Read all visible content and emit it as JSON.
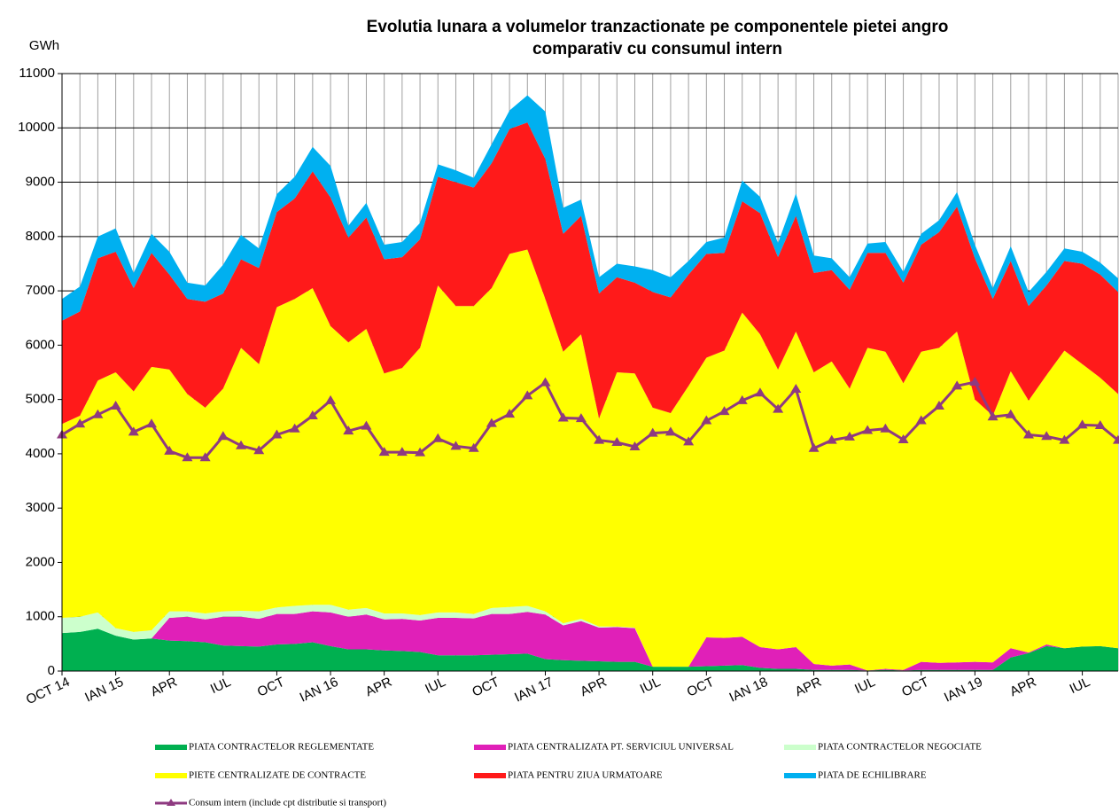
{
  "chart_data": {
    "type": "stacked-area",
    "title": [
      "Evolutia lunara a volumelor tranzactionate pe componentele pietei angro",
      "comparativ cu consumul intern"
    ],
    "y_label": "GWh",
    "categories": [
      "OCT 14",
      null,
      null,
      "IAN 15",
      null,
      null,
      "APR",
      null,
      null,
      "IUL",
      null,
      null,
      "OCT",
      null,
      null,
      "IAN 16",
      null,
      null,
      "APR",
      null,
      null,
      "IUL",
      null,
      null,
      "OCT",
      null,
      null,
      "IAN 17",
      null,
      null,
      "APR",
      null,
      null,
      "IUL",
      null,
      null,
      "OCT",
      null,
      null,
      "IAN 18",
      null,
      null,
      "APR",
      null,
      null,
      "IUL",
      null,
      null,
      "OCT",
      null,
      null,
      "IAN 19",
      null,
      null,
      "APR",
      null,
      null,
      "IUL",
      null,
      null
    ],
    "ylim": [
      0,
      11000
    ],
    "yticks": [
      0,
      1000,
      2000,
      3000,
      4000,
      5000,
      6000,
      7000,
      8000,
      9000,
      10000,
      11000
    ],
    "grid": true,
    "legend": "bottom",
    "series": [
      {
        "name": "PIATA CONTRACTELOR REGLEMENTATE",
        "type": "area",
        "color": "#00b050",
        "values": [
          700,
          720,
          780,
          650,
          580,
          600,
          560,
          550,
          530,
          470,
          460,
          450,
          490,
          500,
          530,
          460,
          400,
          400,
          380,
          370,
          350,
          290,
          290,
          290,
          300,
          310,
          320,
          220,
          200,
          190,
          180,
          170,
          170,
          80,
          80,
          80,
          90,
          100,
          110,
          60,
          40,
          40,
          20,
          20,
          20,
          10,
          20,
          10,
          20,
          20,
          20,
          20,
          20,
          250,
          330,
          460,
          420,
          450,
          460,
          420
        ]
      },
      {
        "name": "PIATA CENTRALIZATA PT. SERVICIUL UNIVERSAL",
        "type": "area",
        "color": "#e020b8",
        "values": [
          0,
          0,
          0,
          0,
          0,
          0,
          420,
          450,
          420,
          530,
          540,
          510,
          560,
          550,
          570,
          620,
          600,
          640,
          570,
          590,
          580,
          690,
          690,
          680,
          750,
          740,
          770,
          820,
          640,
          730,
          620,
          640,
          620,
          0,
          0,
          0,
          530,
          510,
          520,
          380,
          360,
          400,
          110,
          80,
          100,
          0,
          20,
          10,
          150,
          130,
          140,
          150,
          140,
          170,
          10,
          30,
          0,
          0,
          0,
          0
        ]
      },
      {
        "name": "PIATA CONTRACTELOR NEGOCIATE",
        "type": "area",
        "color": "#ccffcc",
        "values": [
          280,
          280,
          300,
          140,
          140,
          150,
          120,
          100,
          110,
          100,
          110,
          140,
          120,
          150,
          120,
          140,
          130,
          120,
          110,
          100,
          100,
          100,
          100,
          80,
          110,
          130,
          110,
          60,
          40,
          40,
          20,
          10,
          10,
          0,
          0,
          0,
          0,
          0,
          0,
          0,
          0,
          0,
          0,
          0,
          0,
          0,
          0,
          0,
          0,
          0,
          0,
          0,
          0,
          0,
          0,
          0,
          0,
          0,
          0,
          0
        ]
      },
      {
        "name": "PIETE CENTRALIZATE DE CONTRACTE",
        "type": "area",
        "color": "#ffff00",
        "values": [
          3570,
          3700,
          4270,
          4710,
          4430,
          4850,
          4450,
          4000,
          3790,
          4100,
          4840,
          4550,
          5530,
          5650,
          5830,
          5130,
          4920,
          5140,
          4420,
          4520,
          4920,
          6020,
          5640,
          5670,
          5890,
          6500,
          6560,
          5750,
          5000,
          5240,
          3830,
          4680,
          4680,
          4770,
          4670,
          5170,
          5150,
          5290,
          5970,
          5760,
          5150,
          5810,
          5370,
          5600,
          5080,
          5940,
          5840,
          5280,
          5710,
          5800,
          6090,
          4830,
          4540,
          5100,
          4640,
          4960,
          5480,
          5200,
          4940,
          4680
        ]
      },
      {
        "name": "PIATA PENTRU ZIUA URMATOARE",
        "type": "area",
        "color": "#ff1a1a",
        "values": [
          1900,
          1920,
          2250,
          2220,
          1900,
          2100,
          1750,
          1750,
          1950,
          1750,
          1630,
          1770,
          1750,
          1850,
          2150,
          2370,
          1930,
          2050,
          2100,
          2040,
          2000,
          2000,
          2280,
          2180,
          2300,
          2300,
          2340,
          2580,
          2170,
          2180,
          2300,
          1750,
          1670,
          2130,
          2130,
          2050,
          1910,
          1800,
          2050,
          2230,
          2070,
          2130,
          1830,
          1680,
          1820,
          1750,
          1820,
          1850,
          1970,
          2130,
          2300,
          2600,
          2150,
          2030,
          1740,
          1650,
          1650,
          1850,
          1900,
          1880
        ]
      },
      {
        "name": "PIATA DE ECHILIBRARE",
        "type": "area",
        "color": "#00b0f0",
        "values": [
          400,
          460,
          400,
          430,
          280,
          350,
          420,
          300,
          300,
          530,
          450,
          360,
          330,
          400,
          450,
          580,
          220,
          270,
          270,
          280,
          300,
          230,
          220,
          180,
          350,
          340,
          500,
          870,
          480,
          300,
          300,
          250,
          300,
          400,
          370,
          250,
          220,
          280,
          380,
          300,
          260,
          410,
          320,
          220,
          230,
          170,
          200,
          200,
          200,
          220,
          270,
          250,
          200,
          270,
          260,
          250,
          230,
          220,
          220,
          250
        ]
      },
      {
        "name": "Consum intern (include cpt distributie si transport)",
        "type": "line",
        "color": "#8e3a80",
        "values": [
          4350,
          4550,
          4720,
          4880,
          4400,
          4550,
          4050,
          3930,
          3930,
          4320,
          4150,
          4060,
          4350,
          4460,
          4700,
          4980,
          4420,
          4510,
          4030,
          4030,
          4020,
          4280,
          4140,
          4100,
          4560,
          4730,
          5070,
          5310,
          4660,
          4650,
          4250,
          4210,
          4130,
          4380,
          4400,
          4220,
          4610,
          4780,
          4980,
          5120,
          4820,
          5190,
          4100,
          4250,
          4310,
          4430,
          4460,
          4260,
          4610,
          4880,
          5250,
          5320,
          4680,
          4720,
          4350,
          4320,
          4250,
          4530,
          4520,
          4250
        ]
      }
    ]
  }
}
